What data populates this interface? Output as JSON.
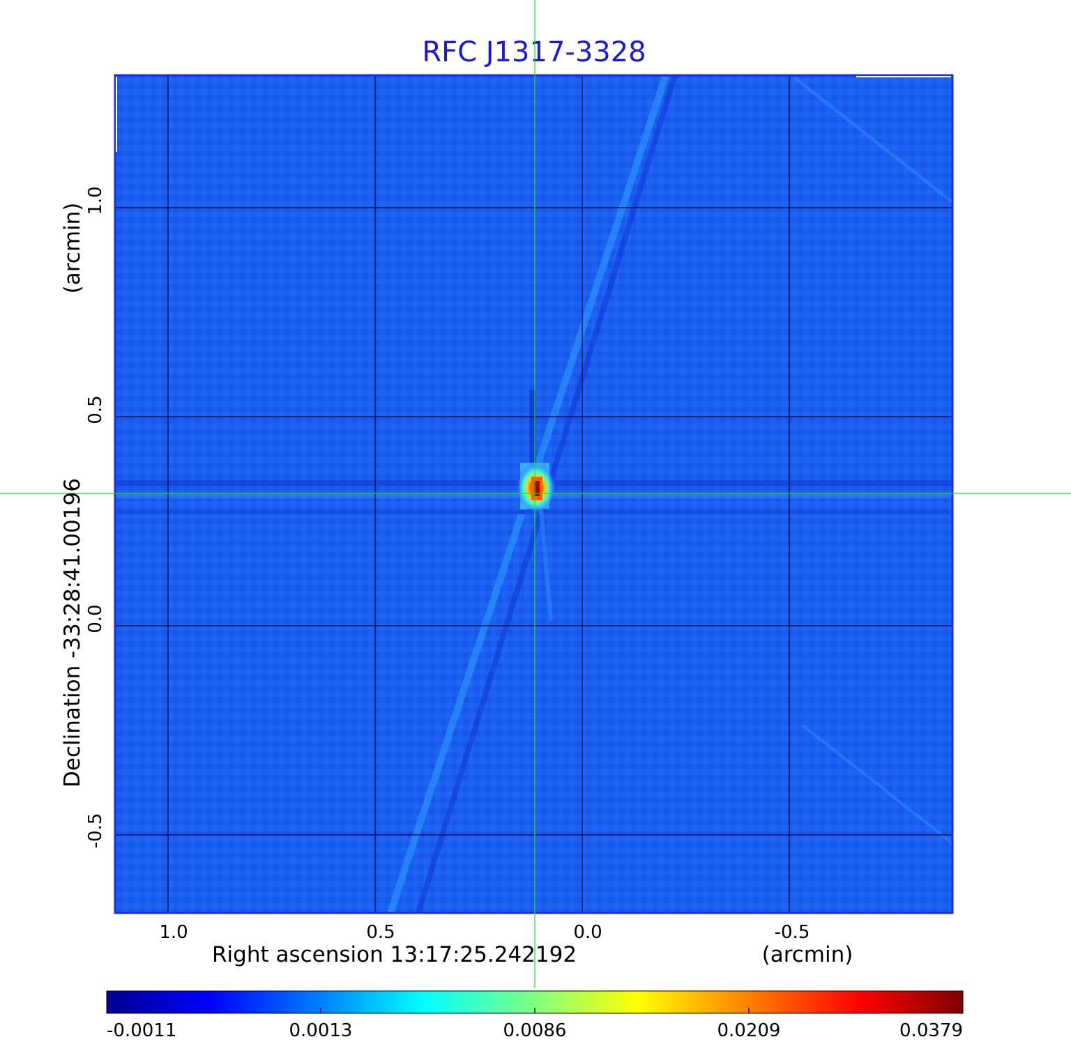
{
  "title": "RFC J1317-3328",
  "x_axis": {
    "label": "Right ascension  13:17:25.242192",
    "unit": "(arcmin)",
    "ticks": [
      "1.0",
      "0.5",
      "0.0",
      "-0.5"
    ]
  },
  "y_axis": {
    "label": "Declination  -33:28:41.00196",
    "unit": "(arcmin)",
    "ticks": [
      "1.0",
      "0.5",
      "0.0",
      "-0.5"
    ]
  },
  "colorbar": {
    "ticks": [
      "-0.0011",
      "0.0013",
      "0.0086",
      "0.0209",
      "0.0379"
    ],
    "colormap": [
      "#00008f",
      "#0000ff",
      "#0080ff",
      "#00ffff",
      "#80ff80",
      "#ffff00",
      "#ff8000",
      "#ff0000",
      "#800000"
    ]
  },
  "colors": {
    "title": "#1a1ad4",
    "background_field": "#1a5cf0",
    "frame": "#1a2ee0",
    "crosshair": "#22dd22",
    "grid": "#000033"
  }
}
